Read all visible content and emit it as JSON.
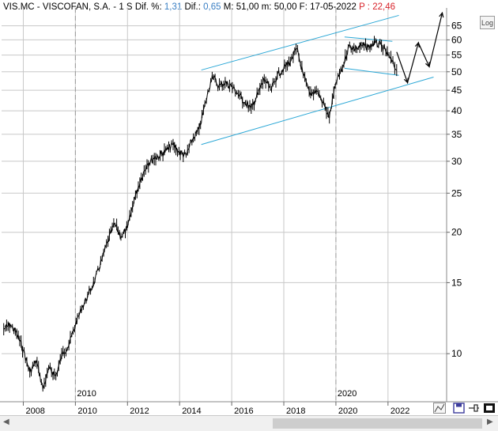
{
  "header": {
    "symbol": "VIS.MC - VISCOFAN, S.A. -",
    "period": "1 S",
    "dif_pct_label": "Dif. %:",
    "dif_pct_value": "1,31",
    "dif_label": "Dif.:",
    "dif_value": "0,65",
    "max_label": "M:",
    "max_value": "51,00",
    "min_label": "m:",
    "min_value": "50,00",
    "date_label": "F:",
    "date_value": "17-05-2022",
    "p_label": "P :",
    "p_value": "22,46"
  },
  "log_button": "Log",
  "icons": [
    "line-tool-icon",
    "save-icon",
    "pin-icon",
    "fullscreen-icon",
    "scroll-left-icon",
    "scroll-right-icon"
  ],
  "colors": {
    "price": "#000000",
    "channel": "#2aa7d6",
    "grid": "#c8c8c8",
    "separator": "#9a9a9a",
    "red_value": "#d8232a",
    "blue_value": "#3a7fc4"
  },
  "chart_data": {
    "type": "line",
    "scale": "log",
    "grid": true,
    "ylim": [
      7.6,
      72
    ],
    "y_ticks": [
      10,
      15,
      20,
      25,
      30,
      35,
      40,
      45,
      50,
      55,
      60,
      65
    ],
    "x_range": [
      "2007-03",
      "2024-04"
    ],
    "x_ticks": [
      "2008",
      "2010",
      "2012",
      "2014",
      "2016",
      "2018",
      "2020",
      "2022"
    ],
    "year_markers": [
      "2010",
      "2020"
    ],
    "series": [
      {
        "points": [
          [
            "2007-04",
            11.5
          ],
          [
            "2007-07",
            11.8
          ],
          [
            "2007-10",
            11.2
          ],
          [
            "2008-01",
            10.2
          ],
          [
            "2008-04",
            9.0
          ],
          [
            "2008-07",
            9.6
          ],
          [
            "2008-10",
            8.2
          ],
          [
            "2009-01",
            9.2
          ],
          [
            "2009-04",
            8.8
          ],
          [
            "2009-07",
            10.0
          ],
          [
            "2009-10",
            10.5
          ],
          [
            "2010-01",
            11.8
          ],
          [
            "2010-04",
            13.0
          ],
          [
            "2010-07",
            14.0
          ],
          [
            "2010-10",
            15.2
          ],
          [
            "2011-01",
            17.0
          ],
          [
            "2011-04",
            19.0
          ],
          [
            "2011-07",
            21.0
          ],
          [
            "2011-10",
            19.5
          ],
          [
            "2012-01",
            20.5
          ],
          [
            "2012-04",
            24.0
          ],
          [
            "2012-07",
            27.0
          ],
          [
            "2012-10",
            29.5
          ],
          [
            "2013-01",
            30.5
          ],
          [
            "2013-04",
            31.0
          ],
          [
            "2013-07",
            32.0
          ],
          [
            "2013-10",
            33.0
          ],
          [
            "2014-01",
            31.5
          ],
          [
            "2014-04",
            31.0
          ],
          [
            "2014-07",
            34.0
          ],
          [
            "2014-10",
            36.0
          ],
          [
            "2015-01",
            42.0
          ],
          [
            "2015-04",
            49.0
          ],
          [
            "2015-07",
            46.0
          ],
          [
            "2015-10",
            47.0
          ],
          [
            "2016-01",
            46.0
          ],
          [
            "2016-04",
            44.0
          ],
          [
            "2016-07",
            42.0
          ],
          [
            "2016-10",
            40.5
          ],
          [
            "2017-01",
            44.0
          ],
          [
            "2017-04",
            48.0
          ],
          [
            "2017-07",
            45.0
          ],
          [
            "2017-10",
            49.0
          ],
          [
            "2018-01",
            51.0
          ],
          [
            "2018-04",
            53.0
          ],
          [
            "2018-07",
            57.0
          ],
          [
            "2018-10",
            49.0
          ],
          [
            "2019-01",
            44.0
          ],
          [
            "2019-04",
            45.0
          ],
          [
            "2019-07",
            42.0
          ],
          [
            "2019-10",
            38.5
          ],
          [
            "2020-01",
            47.0
          ],
          [
            "2020-04",
            51.0
          ],
          [
            "2020-07",
            58.0
          ],
          [
            "2020-10",
            57.0
          ],
          [
            "2021-01",
            58.0
          ],
          [
            "2021-04",
            57.5
          ],
          [
            "2021-07",
            59.0
          ],
          [
            "2021-10",
            58.0
          ],
          [
            "2022-01",
            55.0
          ],
          [
            "2022-05",
            50.5
          ]
        ]
      }
    ],
    "projection": [
      [
        "2022-05",
        56.0
      ],
      [
        "2022-10",
        47.0
      ],
      [
        "2023-03",
        59.0
      ],
      [
        "2023-08",
        51.5
      ],
      [
        "2024-02",
        70.0
      ]
    ],
    "channel_lines": [
      {
        "from": [
          "2014-11",
          50.5
        ],
        "to": [
          "2022-06",
          69.0
        ]
      },
      {
        "from": [
          "2014-11",
          33.0
        ],
        "to": [
          "2023-10",
          48.5
        ]
      }
    ],
    "flag_lines": [
      {
        "from": [
          "2020-05",
          61.0
        ],
        "to": [
          "2022-03",
          59.5
        ]
      },
      {
        "from": [
          "2020-05",
          51.0
        ],
        "to": [
          "2022-06",
          49.0
        ]
      }
    ]
  }
}
